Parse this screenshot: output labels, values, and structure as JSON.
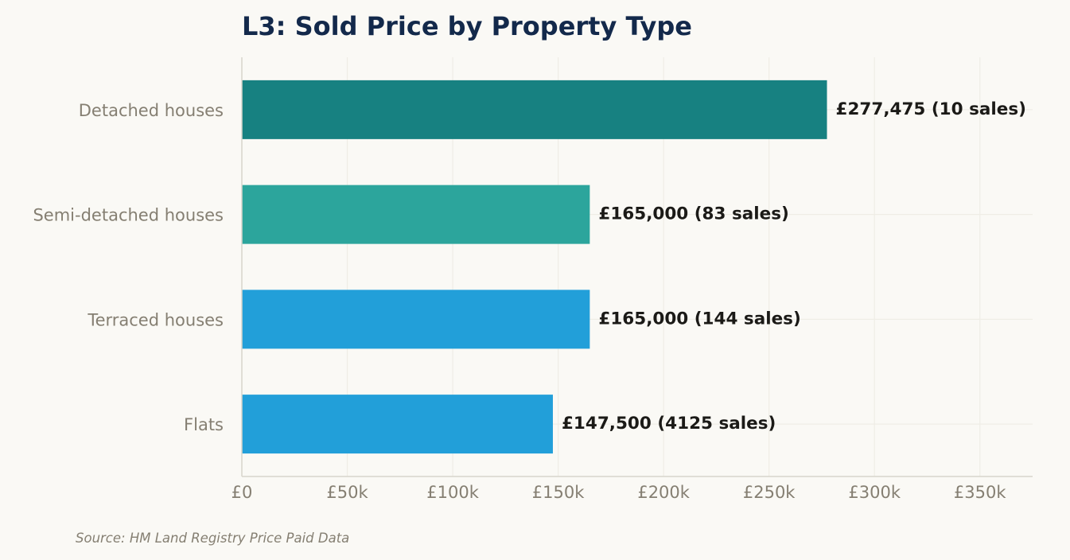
{
  "chart_data": {
    "type": "bar",
    "orientation": "horizontal",
    "title": "L3: Sold Price by Property Type",
    "xlabel": "",
    "ylabel": "",
    "categories": [
      "Detached houses",
      "Semi-detached houses",
      "Terraced houses",
      "Flats"
    ],
    "values": [
      277475,
      165000,
      165000,
      147500
    ],
    "value_labels": [
      "£277,475  (10 sales)",
      "£165,000  (83 sales)",
      "£165,000  (144 sales)",
      "£147,500  (4125 sales)"
    ],
    "colors": [
      "#178181",
      "#2ca59c",
      "#229fd9",
      "#229fd9"
    ],
    "xlim": [
      0,
      375000
    ],
    "x_ticks": [
      0,
      50000,
      100000,
      150000,
      200000,
      250000,
      300000,
      350000
    ],
    "x_tick_labels": [
      "£0",
      "£50k",
      "£100k",
      "£150k",
      "£200k",
      "£250k",
      "£300k",
      "£350k"
    ],
    "grid": true,
    "legend": "none",
    "source": "Source: HM Land Registry Price Paid Data"
  }
}
